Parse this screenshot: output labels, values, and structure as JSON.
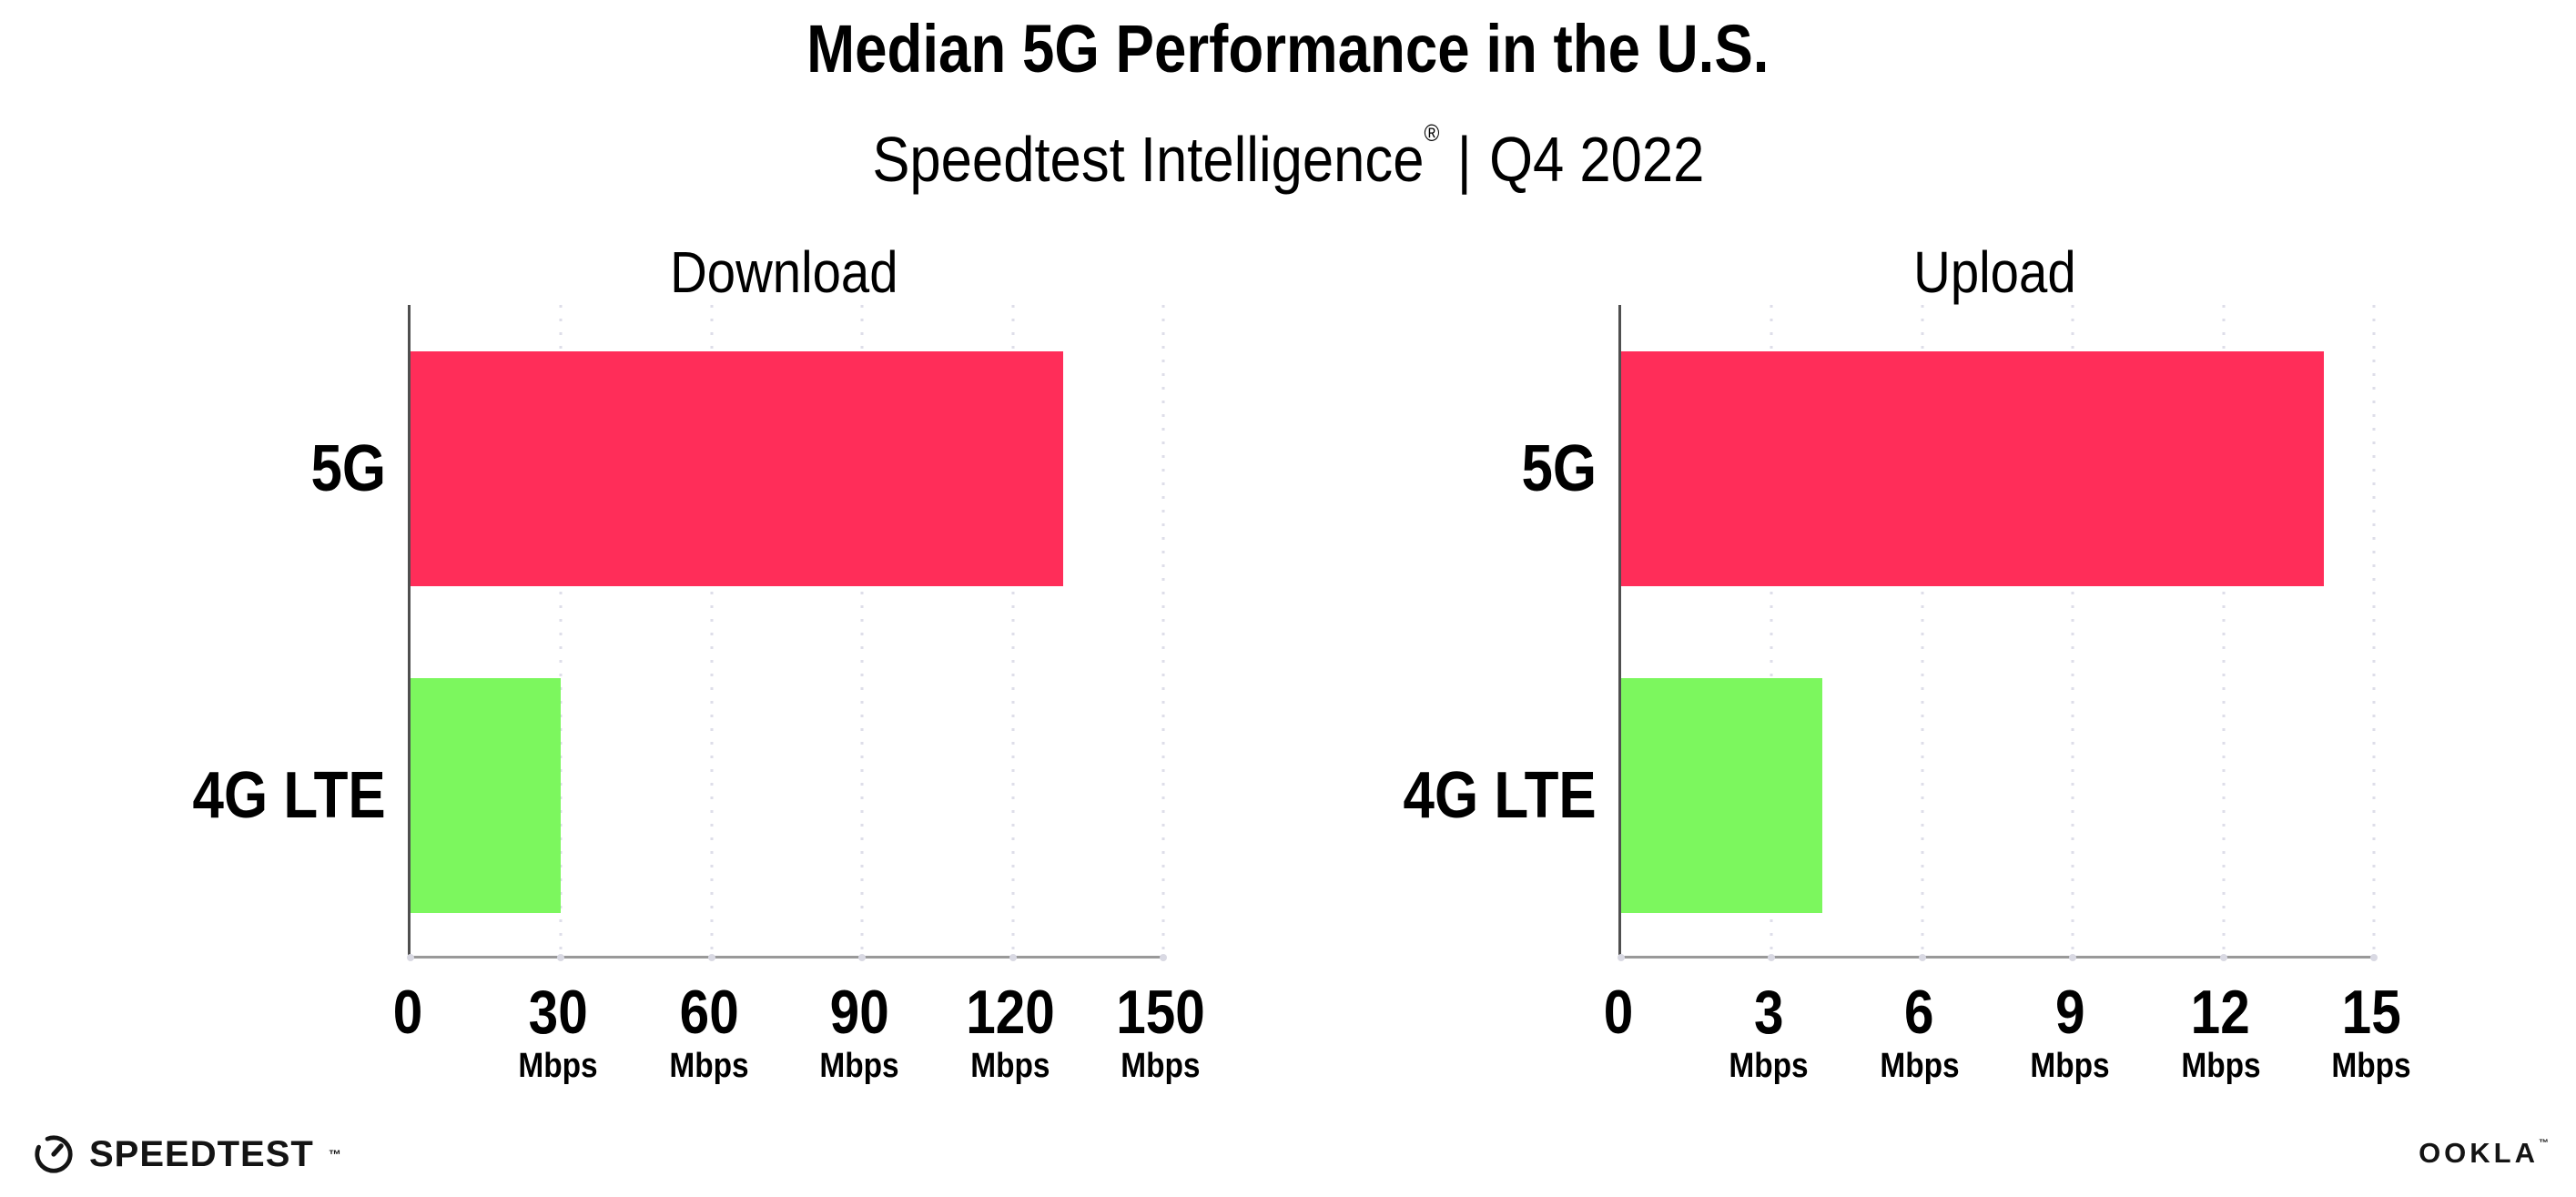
{
  "header": {
    "title": "Median 5G Performance in the U.S.",
    "brand": "Speedtest Intelligence",
    "registered_mark": "®",
    "separator": "|",
    "period": "Q4 2022"
  },
  "chart_data": [
    {
      "type": "bar",
      "orientation": "horizontal",
      "title": "Download",
      "categories": [
        "5G",
        "4G LTE"
      ],
      "values": [
        130,
        30
      ],
      "unit": "Mbps",
      "xlim": [
        0,
        150
      ],
      "xticks": [
        0,
        30,
        60,
        90,
        120,
        150
      ],
      "bar_colors": [
        "#FF2D59",
        "#7CF75E"
      ],
      "grid": "dotted-vertical",
      "legend": "none"
    },
    {
      "type": "bar",
      "orientation": "horizontal",
      "title": "Upload",
      "categories": [
        "5G",
        "4G LTE"
      ],
      "values": [
        14,
        4
      ],
      "unit": "Mbps",
      "xlim": [
        0,
        15
      ],
      "xticks": [
        0,
        3,
        6,
        9,
        12,
        15
      ],
      "bar_colors": [
        "#FF2D59",
        "#7CF75E"
      ],
      "grid": "dotted-vertical",
      "legend": "none"
    }
  ],
  "footer": {
    "speedtest_label": "SPEEDTEST",
    "speedtest_tm": "™",
    "ookla_label": "OOKLA",
    "ookla_tm": "™"
  },
  "colors": {
    "bar_5g": "#FF2D59",
    "bar_4g_lte": "#7CF75E",
    "gridline": "#DEDEE9",
    "tick_dot": "#D9D9E3",
    "y_axis": "#4F4F4F",
    "x_axis": "#999999",
    "text": "#000000",
    "background": "#FFFFFF"
  }
}
